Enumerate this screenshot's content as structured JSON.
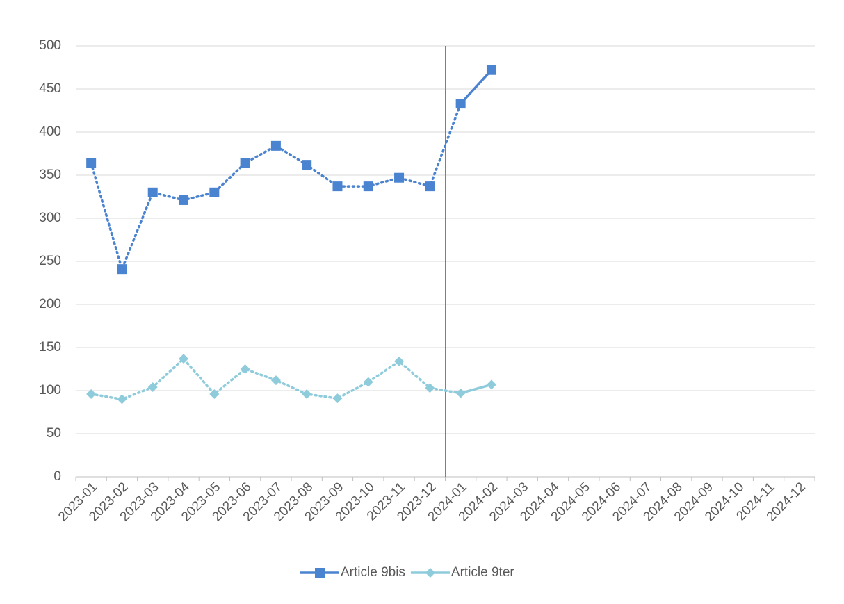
{
  "chart_data": {
    "type": "line",
    "categories": [
      "2023-01",
      "2023-02",
      "2023-03",
      "2023-04",
      "2023-05",
      "2023-06",
      "2023-07",
      "2023-08",
      "2023-09",
      "2023-10",
      "2023-11",
      "2023-12",
      "2024-01",
      "2024-02",
      "2024-03",
      "2024-04",
      "2024-05",
      "2024-06",
      "2024-07",
      "2024-08",
      "2024-09",
      "2024-10",
      "2024-11",
      "2024-12"
    ],
    "series": [
      {
        "name": "Article 9bis",
        "color": "#4a83d0",
        "marker": "square",
        "values": [
          364,
          241,
          330,
          321,
          330,
          364,
          384,
          362,
          337,
          337,
          347,
          337,
          433,
          472,
          null,
          null,
          null,
          null,
          null,
          null,
          null,
          null,
          null,
          null
        ]
      },
      {
        "name": "Article 9ter",
        "color": "#8ecbdb",
        "marker": "diamond",
        "values": [
          96,
          90,
          104,
          137,
          96,
          125,
          112,
          96,
          91,
          110,
          134,
          103,
          97,
          107,
          null,
          null,
          null,
          null,
          null,
          null,
          null,
          null,
          null,
          null
        ]
      }
    ],
    "ylim": [
      0,
      500
    ],
    "yticks": [
      0,
      50,
      100,
      150,
      200,
      250,
      300,
      350,
      400,
      450,
      500
    ],
    "grid": true,
    "divider_category": "2024-01",
    "line_style_before_divider": "dotted",
    "line_style_after_divider": "solid",
    "legend": "bottom"
  }
}
